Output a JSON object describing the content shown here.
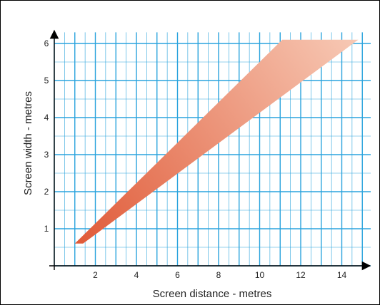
{
  "chart_data": {
    "type": "area",
    "title": "",
    "xlabel": "Screen distance - metres",
    "ylabel": "Screen width - metres",
    "xlim": [
      0,
      15.5
    ],
    "ylim": [
      -1,
      6.3
    ],
    "x_ticks": [
      2,
      4,
      6,
      8,
      10,
      12,
      14
    ],
    "y_ticks": [
      1,
      2,
      3,
      4,
      5,
      6
    ],
    "x_tick_labels": [
      "2",
      "4",
      "6",
      "8",
      "10",
      "12",
      "14"
    ],
    "y_tick_labels": [
      "1",
      "2",
      "3",
      "4",
      "5",
      "6"
    ],
    "grid": true,
    "grid_minor_step": 0.5,
    "grid_major_step": 1,
    "grid_color": "#2aa3dd",
    "series": [
      {
        "fill_gradient": [
          "#e05a38",
          "#f7c9b5"
        ],
        "polygon": [
          {
            "x": 1.0,
            "y": 0.6
          },
          {
            "x": 11.1,
            "y": 6.1
          },
          {
            "x": 14.8,
            "y": 6.1
          },
          {
            "x": 1.4,
            "y": 0.6
          }
        ]
      }
    ]
  }
}
